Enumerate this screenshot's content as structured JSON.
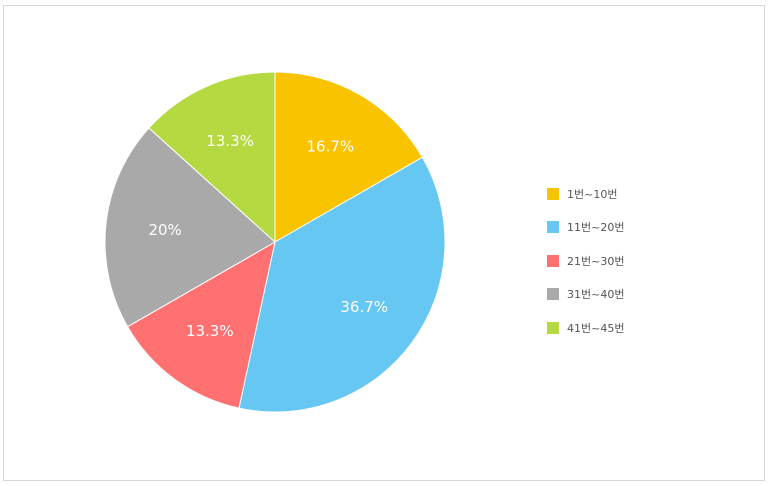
{
  "chart_data": {
    "type": "pie",
    "title": "",
    "slices": [
      {
        "label": "1번~10번",
        "value": 16.7,
        "value_label": "16.7%",
        "color": "#F9C300"
      },
      {
        "label": "11번~20번",
        "value": 36.7,
        "value_label": "36.7%",
        "color": "#66C7F2"
      },
      {
        "label": "21번~30번",
        "value": 13.3,
        "value_label": "13.3%",
        "color": "#FF7070"
      },
      {
        "label": "31번~40번",
        "value": 20,
        "value_label": "20%",
        "color": "#A9A9A9"
      },
      {
        "label": "41번~45번",
        "value": 13.3,
        "value_label": "13.3%",
        "color": "#B4D941"
      }
    ],
    "legend": {
      "placement": "right"
    }
  }
}
